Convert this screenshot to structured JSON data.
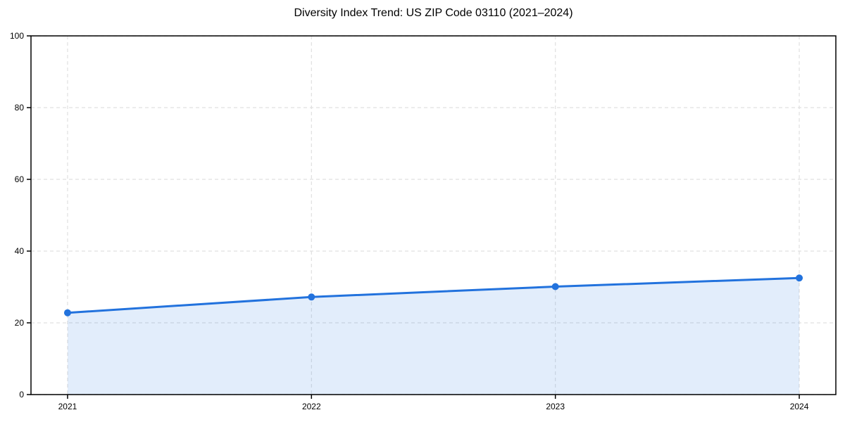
{
  "page": {
    "background_color": "#ffffff"
  },
  "chart_data": {
    "type": "area",
    "title": "Diversity Index Trend: US ZIP Code 03110 (2021–2024)",
    "x": [
      2021,
      2022,
      2023,
      2024
    ],
    "values": [
      22.8,
      27.2,
      30.1,
      32.5
    ],
    "xticks": [
      "2021",
      "2022",
      "2023",
      "2024"
    ],
    "yticks": [
      0,
      20,
      40,
      60,
      80,
      100
    ],
    "ylim": [
      0,
      100
    ],
    "xlim_padding_years": 0.15,
    "xlabel": "",
    "ylabel": "",
    "grid": true,
    "grid_style": "dashed",
    "legend_visible": false,
    "line_color": "#2272dd",
    "marker_color": "#2272dd",
    "marker_shape": "circle",
    "fill_color": "rgba(34, 114, 221, 0.13)",
    "grid_color": "#e0e0e0",
    "axis_color": "#000000",
    "text_color": "#000000"
  }
}
